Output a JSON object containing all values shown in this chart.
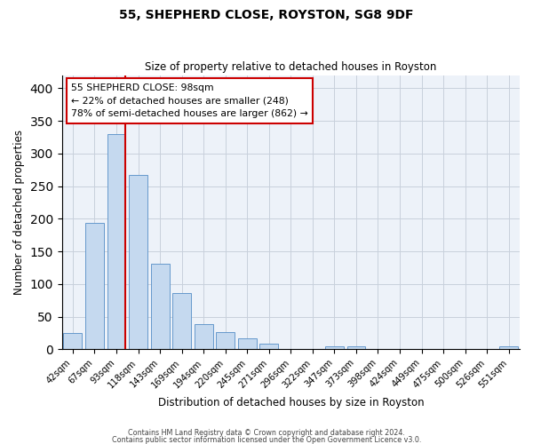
{
  "title": "55, SHEPHERD CLOSE, ROYSTON, SG8 9DF",
  "subtitle": "Size of property relative to detached houses in Royston",
  "xlabel": "Distribution of detached houses by size in Royston",
  "ylabel": "Number of detached properties",
  "bar_labels": [
    "42sqm",
    "67sqm",
    "93sqm",
    "118sqm",
    "143sqm",
    "169sqm",
    "194sqm",
    "220sqm",
    "245sqm",
    "271sqm",
    "296sqm",
    "322sqm",
    "347sqm",
    "373sqm",
    "398sqm",
    "424sqm",
    "449sqm",
    "475sqm",
    "500sqm",
    "526sqm",
    "551sqm"
  ],
  "bar_values": [
    25,
    193,
    330,
    267,
    131,
    86,
    38,
    26,
    17,
    8,
    0,
    0,
    5,
    5,
    0,
    0,
    0,
    0,
    0,
    0,
    4
  ],
  "bar_color": "#c5d9ef",
  "bar_edge_color": "#6699cc",
  "vline_color": "#cc0000",
  "ylim": [
    0,
    420
  ],
  "yticks": [
    0,
    50,
    100,
    150,
    200,
    250,
    300,
    350,
    400
  ],
  "annotation_title": "55 SHEPHERD CLOSE: 98sqm",
  "annotation_line1": "← 22% of detached houses are smaller (248)",
  "annotation_line2": "78% of semi-detached houses are larger (862) →",
  "annotation_box_color": "#ffffff",
  "annotation_box_edge": "#cc0000",
  "footer1": "Contains HM Land Registry data © Crown copyright and database right 2024.",
  "footer2": "Contains public sector information licensed under the Open Government Licence v3.0.",
  "background_color": "#ffffff",
  "axes_bg_color": "#edf2f9",
  "grid_color": "#c8d0dc"
}
